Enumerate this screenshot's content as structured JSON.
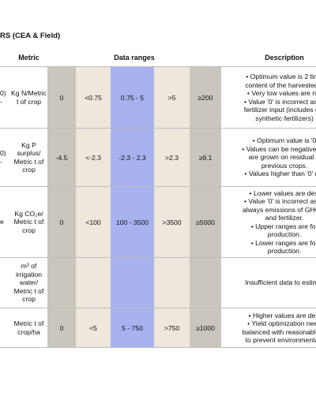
{
  "header": {
    "title": "RS (CEA & Field)"
  },
  "table": {
    "columns": [
      "Metric",
      "Data ranges",
      "Description"
    ],
    "rows": [
      {
        "prefix": [
          "0)",
          "-"
        ],
        "metric": "Kg N/Metric t of crop",
        "ranges": [
          "0",
          "<0.75",
          "0.75 - 5",
          ">5",
          "≥200"
        ],
        "description": [
          "• Optimum value is 2 time",
          "content of the harvested p",
          "• Very low values are not",
          "• Value '0' is incorrect as cr",
          "fertilizer input (includes org",
          "synthetic fertilizers)"
        ]
      },
      {
        "prefix": [
          "0)",
          "-"
        ],
        "metric": "Kg P surplus/ Metric t of crop",
        "ranges": [
          "-4.5",
          "<-2.3",
          "-2.3 - 2.3",
          ">2.3",
          "≥9.1"
        ],
        "description": [
          "• Optimum value is '0",
          "• Values can be negative wh",
          "are grown on residual P",
          "previous crops.",
          "• Values higher than '0' ma"
        ]
      },
      {
        "prefix": [
          "e"
        ],
        "metric": "Kg CO₂e/ Metric t of crop",
        "ranges": [
          "0",
          "<100",
          "100 - 3500",
          ">3500",
          "≥5000"
        ],
        "description": [
          "• Lower values are desi",
          "• Value '0' is incorrect as th",
          "always emissions of GHG fr",
          "and fertilizer.",
          "• Upper ranges are for",
          "production.",
          "• Lower ranges are for",
          "production."
        ]
      },
      {
        "prefix": [],
        "metric": "m³ of irrigation water/ Metric t of crop",
        "ranges": [],
        "description": [
          "Insufficient data to estimat"
        ]
      },
      {
        "prefix": [],
        "metric": "Metric t of crop/ha",
        "ranges": [
          "0",
          "<5",
          "5 - 750",
          ">750",
          "≥1000"
        ],
        "description": [
          "• Higher values are desi",
          "• Yield optimization need",
          "balanced with reasonable in",
          "to prevent environmental i"
        ]
      }
    ]
  }
}
